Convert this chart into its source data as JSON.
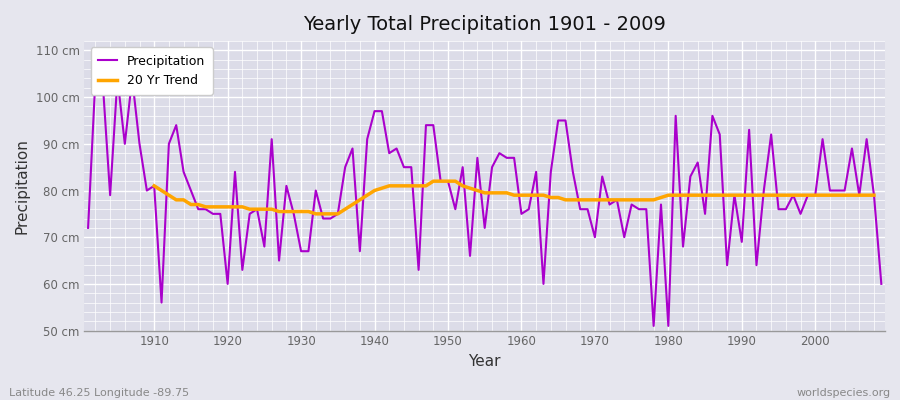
{
  "title": "Yearly Total Precipitation 1901 - 2009",
  "xlabel": "Year",
  "ylabel": "Precipitation",
  "lat_lon_label": "Latitude 46.25 Longitude -89.75",
  "watermark": "worldspecies.org",
  "ylim": [
    50,
    112
  ],
  "yticks": [
    50,
    60,
    70,
    80,
    90,
    100,
    110
  ],
  "ytick_labels": [
    "50 cm",
    "60 cm",
    "70 cm",
    "80 cm",
    "90 cm",
    "100 cm",
    "110 cm"
  ],
  "xlim": [
    1900.5,
    2009.5
  ],
  "xticks": [
    1910,
    1920,
    1930,
    1940,
    1950,
    1960,
    1970,
    1980,
    1990,
    2000
  ],
  "precip_color": "#AA00CC",
  "trend_color": "#FFA500",
  "bg_color": "#E6E6EE",
  "plot_bg_color": "#DCDCE8",
  "legend_entries": [
    "Precipitation",
    "20 Yr Trend"
  ],
  "years": [
    1901,
    1902,
    1903,
    1904,
    1905,
    1906,
    1907,
    1908,
    1909,
    1910,
    1911,
    1912,
    1913,
    1914,
    1915,
    1916,
    1917,
    1918,
    1919,
    1920,
    1921,
    1922,
    1923,
    1924,
    1925,
    1926,
    1927,
    1928,
    1929,
    1930,
    1931,
    1932,
    1933,
    1934,
    1935,
    1936,
    1937,
    1938,
    1939,
    1940,
    1941,
    1942,
    1943,
    1944,
    1945,
    1946,
    1947,
    1948,
    1949,
    1950,
    1951,
    1952,
    1953,
    1954,
    1955,
    1956,
    1957,
    1958,
    1959,
    1960,
    1961,
    1962,
    1963,
    1964,
    1965,
    1966,
    1967,
    1968,
    1969,
    1970,
    1971,
    1972,
    1973,
    1974,
    1975,
    1976,
    1977,
    1978,
    1979,
    1980,
    1981,
    1982,
    1983,
    1984,
    1985,
    1986,
    1987,
    1988,
    1989,
    1990,
    1991,
    1992,
    1993,
    1994,
    1995,
    1996,
    1997,
    1998,
    1999,
    2000,
    2001,
    2002,
    2003,
    2004,
    2005,
    2006,
    2007,
    2008,
    2009
  ],
  "precip": [
    72,
    104,
    103,
    79,
    104,
    90,
    104,
    90,
    80,
    81,
    56,
    90,
    94,
    84,
    80,
    76,
    76,
    75,
    75,
    60,
    84,
    63,
    75,
    76,
    68,
    91,
    65,
    81,
    75,
    67,
    67,
    80,
    74,
    74,
    75,
    85,
    89,
    67,
    91,
    97,
    97,
    88,
    89,
    85,
    85,
    63,
    94,
    94,
    82,
    82,
    76,
    85,
    66,
    87,
    72,
    85,
    88,
    87,
    87,
    75,
    76,
    84,
    60,
    84,
    95,
    95,
    84,
    76,
    76,
    70,
    83,
    77,
    78,
    70,
    77,
    76,
    76,
    51,
    77,
    51,
    96,
    68,
    83,
    86,
    75,
    96,
    92,
    64,
    79,
    69,
    93,
    64,
    80,
    92,
    76,
    76,
    79,
    75,
    79,
    79,
    91,
    80,
    80,
    80,
    89,
    79,
    91,
    79,
    60
  ],
  "trend": [
    null,
    null,
    null,
    null,
    null,
    null,
    null,
    null,
    null,
    81,
    80,
    79,
    78,
    78,
    77,
    77,
    76.5,
    76.5,
    76.5,
    76.5,
    76.5,
    76.5,
    76,
    76,
    76,
    76,
    75.5,
    75.5,
    75.5,
    75.5,
    75.5,
    75,
    75,
    75,
    75,
    76,
    77,
    78,
    79,
    80,
    80.5,
    81,
    81,
    81,
    81,
    81,
    81,
    82,
    82,
    82,
    82,
    81,
    80.5,
    80,
    79.5,
    79.5,
    79.5,
    79.5,
    79,
    79,
    79,
    79,
    79,
    78.5,
    78.5,
    78,
    78,
    78,
    78,
    78,
    78,
    78,
    78,
    78,
    78,
    78,
    78,
    78,
    78.5,
    79,
    79,
    79,
    79,
    79,
    79,
    79,
    79,
    79,
    79,
    79,
    79,
    79,
    79,
    79,
    79,
    79,
    79,
    79,
    79,
    79,
    79,
    79,
    79,
    79,
    79,
    79,
    79,
    79,
    null
  ]
}
